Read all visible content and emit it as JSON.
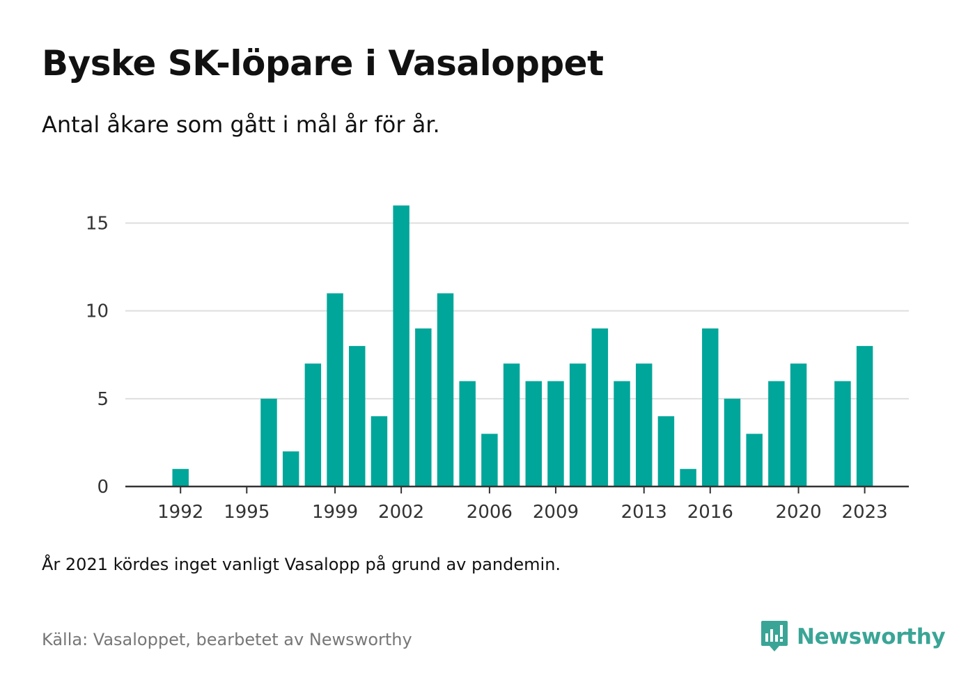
{
  "title": "Byske SK-löpare i Vasaloppet",
  "subtitle": "Antal åkare som gått i mål år för år.",
  "note": "År 2021 kördes inget vanligt Vasalopp på grund av pandemin.",
  "source": "Källa: Vasaloppet, bearbetet av Newsworthy",
  "brand": {
    "name": "Newsworthy",
    "icon": "newsworthy-logo-icon"
  },
  "colors": {
    "bar": "#00a69a",
    "grid": "#dedede",
    "axis": "#333333",
    "brand": "#3aa596",
    "tick_text": "#333333"
  },
  "chart_data": {
    "type": "bar",
    "title": "Byske SK-löpare i Vasaloppet",
    "subtitle": "Antal åkare som gått i mål år för år.",
    "xlabel": "",
    "ylabel": "",
    "x_range": [
      1989.5,
      2025
    ],
    "ylim": [
      0,
      17
    ],
    "yticks": [
      0,
      5,
      10,
      15
    ],
    "xticks": [
      1992,
      1995,
      1999,
      2002,
      2006,
      2009,
      2013,
      2016,
      2020,
      2023
    ],
    "grid": true,
    "legend": false,
    "categories": [
      1992,
      1993,
      1994,
      1995,
      1996,
      1997,
      1998,
      1999,
      2000,
      2001,
      2002,
      2003,
      2004,
      2005,
      2006,
      2007,
      2008,
      2009,
      2010,
      2011,
      2012,
      2013,
      2014,
      2015,
      2016,
      2017,
      2018,
      2019,
      2020,
      2021,
      2022,
      2023
    ],
    "values": [
      1,
      0,
      0,
      0,
      5,
      2,
      7,
      11,
      8,
      4,
      16,
      9,
      11,
      6,
      3,
      7,
      6,
      6,
      7,
      9,
      6,
      7,
      4,
      1,
      9,
      5,
      3,
      6,
      7,
      0,
      6,
      8
    ]
  }
}
